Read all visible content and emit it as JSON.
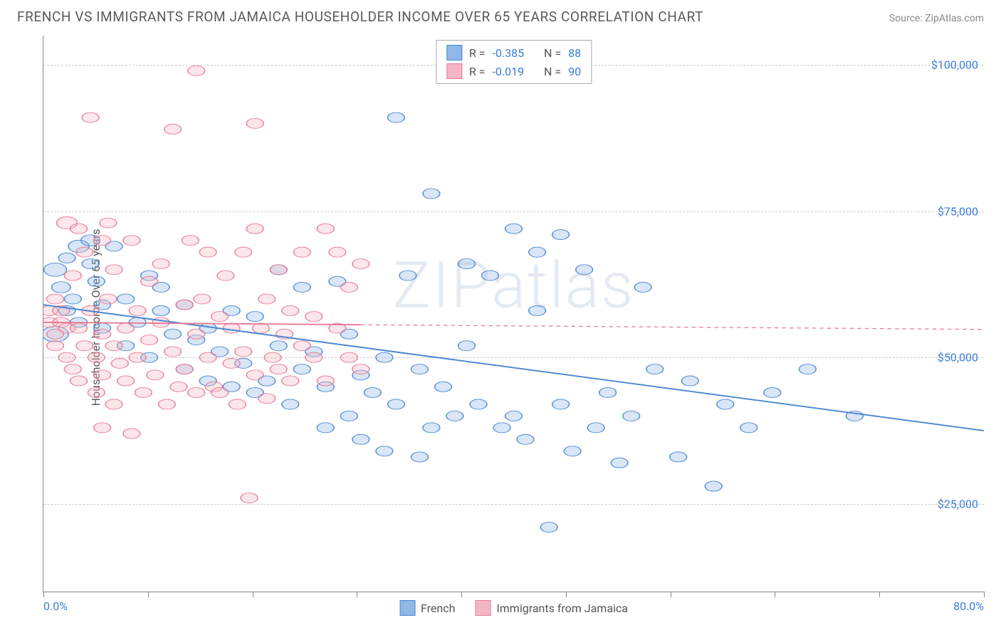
{
  "header": {
    "title": "FRENCH VS IMMIGRANTS FROM JAMAICA HOUSEHOLDER INCOME OVER 65 YEARS CORRELATION CHART",
    "source": "Source: ZipAtlas.com"
  },
  "watermark": "ZIPatlas",
  "chart": {
    "type": "scatter",
    "xlim": [
      0,
      80
    ],
    "ylim": [
      10000,
      105000
    ],
    "x_unit": "percent",
    "xlabel": "",
    "ylabel": "Householder Income Over 65 years",
    "xticks_minor": [
      0,
      8.89,
      17.78,
      26.67,
      35.56,
      44.44,
      53.33,
      62.22,
      71.11,
      80
    ],
    "xtick_labels": [
      {
        "x": 0,
        "label": "0.0%",
        "align": "left"
      },
      {
        "x": 80,
        "label": "80.0%",
        "align": "right"
      }
    ],
    "ytick_values": [
      25000,
      50000,
      75000,
      100000
    ],
    "ytick_labels": [
      "$25,000",
      "$50,000",
      "$75,000",
      "$100,000"
    ],
    "gridline_color": "#cccccc",
    "axis_color": "#888888",
    "ytick_label_color": "#3b7dd8",
    "xtick_label_color": "#3b7dd8",
    "background_color": "#ffffff",
    "label_fontsize": 16,
    "title_fontsize": 19,
    "marker_radius_range": [
      6,
      14
    ],
    "marker_radius_default": 9,
    "marker_fill_opacity": 0.35,
    "marker_stroke_opacity": 0.9,
    "marker_stroke_width": 1.2,
    "trend_line_width": 2.4
  },
  "legend_stats": {
    "series1": {
      "R_label": "R =",
      "R": "-0.385",
      "N_label": "N =",
      "N": "88"
    },
    "series2": {
      "R_label": "R =",
      "R": "-0.019",
      "N_label": "N =",
      "N": "90"
    }
  },
  "bottom_legend": {
    "series1_label": "French",
    "series2_label": "Immigrants from Jamaica"
  },
  "series": [
    {
      "name": "French",
      "fill_color": "#8fb7e8",
      "stroke_color": "#4a86d0",
      "trend": {
        "x1": 0,
        "y1": 59000,
        "x2": 80,
        "y2": 37500,
        "x_max": 80,
        "dash": "none"
      },
      "points": [
        {
          "x": 1,
          "y": 54000,
          "r": 14
        },
        {
          "x": 1,
          "y": 65000,
          "r": 12
        },
        {
          "x": 1.5,
          "y": 62000,
          "r": 10
        },
        {
          "x": 2,
          "y": 67000
        },
        {
          "x": 2,
          "y": 58000
        },
        {
          "x": 2.5,
          "y": 60000
        },
        {
          "x": 3,
          "y": 69000,
          "r": 11
        },
        {
          "x": 3,
          "y": 56000
        },
        {
          "x": 4,
          "y": 70000,
          "r": 10
        },
        {
          "x": 4,
          "y": 66000
        },
        {
          "x": 4.5,
          "y": 63000
        },
        {
          "x": 5,
          "y": 59000
        },
        {
          "x": 5,
          "y": 55000
        },
        {
          "x": 6,
          "y": 69000
        },
        {
          "x": 7,
          "y": 52000
        },
        {
          "x": 7,
          "y": 60000
        },
        {
          "x": 8,
          "y": 56000
        },
        {
          "x": 9,
          "y": 64000
        },
        {
          "x": 9,
          "y": 50000
        },
        {
          "x": 10,
          "y": 62000
        },
        {
          "x": 10,
          "y": 58000
        },
        {
          "x": 11,
          "y": 54000
        },
        {
          "x": 12,
          "y": 48000
        },
        {
          "x": 12,
          "y": 59000
        },
        {
          "x": 13,
          "y": 53000
        },
        {
          "x": 14,
          "y": 46000
        },
        {
          "x": 14,
          "y": 55000
        },
        {
          "x": 15,
          "y": 51000
        },
        {
          "x": 16,
          "y": 45000
        },
        {
          "x": 16,
          "y": 58000
        },
        {
          "x": 17,
          "y": 49000
        },
        {
          "x": 18,
          "y": 57000
        },
        {
          "x": 18,
          "y": 44000
        },
        {
          "x": 19,
          "y": 46000
        },
        {
          "x": 20,
          "y": 52000
        },
        {
          "x": 20,
          "y": 65000
        },
        {
          "x": 21,
          "y": 42000
        },
        {
          "x": 22,
          "y": 62000
        },
        {
          "x": 22,
          "y": 48000
        },
        {
          "x": 23,
          "y": 51000
        },
        {
          "x": 24,
          "y": 38000
        },
        {
          "x": 24,
          "y": 45000
        },
        {
          "x": 25,
          "y": 63000
        },
        {
          "x": 26,
          "y": 40000
        },
        {
          "x": 26,
          "y": 54000
        },
        {
          "x": 27,
          "y": 47000
        },
        {
          "x": 27,
          "y": 36000
        },
        {
          "x": 28,
          "y": 44000
        },
        {
          "x": 29,
          "y": 50000
        },
        {
          "x": 29,
          "y": 34000
        },
        {
          "x": 30,
          "y": 91000
        },
        {
          "x": 30,
          "y": 42000
        },
        {
          "x": 31,
          "y": 64000
        },
        {
          "x": 32,
          "y": 48000
        },
        {
          "x": 32,
          "y": 33000
        },
        {
          "x": 33,
          "y": 78000
        },
        {
          "x": 33,
          "y": 38000
        },
        {
          "x": 34,
          "y": 45000
        },
        {
          "x": 35,
          "y": 40000
        },
        {
          "x": 36,
          "y": 66000
        },
        {
          "x": 36,
          "y": 52000
        },
        {
          "x": 37,
          "y": 42000
        },
        {
          "x": 38,
          "y": 64000
        },
        {
          "x": 39,
          "y": 38000
        },
        {
          "x": 40,
          "y": 40000
        },
        {
          "x": 40,
          "y": 72000
        },
        {
          "x": 41,
          "y": 36000
        },
        {
          "x": 42,
          "y": 58000
        },
        {
          "x": 42,
          "y": 68000
        },
        {
          "x": 43,
          "y": 21000
        },
        {
          "x": 44,
          "y": 71000
        },
        {
          "x": 44,
          "y": 42000
        },
        {
          "x": 45,
          "y": 34000
        },
        {
          "x": 46,
          "y": 65000
        },
        {
          "x": 47,
          "y": 38000
        },
        {
          "x": 48,
          "y": 44000
        },
        {
          "x": 49,
          "y": 32000
        },
        {
          "x": 50,
          "y": 40000
        },
        {
          "x": 51,
          "y": 62000
        },
        {
          "x": 52,
          "y": 48000
        },
        {
          "x": 54,
          "y": 33000
        },
        {
          "x": 55,
          "y": 46000
        },
        {
          "x": 57,
          "y": 28000
        },
        {
          "x": 58,
          "y": 42000
        },
        {
          "x": 60,
          "y": 38000
        },
        {
          "x": 62,
          "y": 44000
        },
        {
          "x": 65,
          "y": 48000
        },
        {
          "x": 69,
          "y": 40000
        }
      ]
    },
    {
      "name": "Immigrants from Jamaica",
      "fill_color": "#f4b6c4",
      "stroke_color": "#e87a96",
      "trend": {
        "x1": 0,
        "y1": 56000,
        "x2": 80,
        "y2": 54800,
        "x_max": 27,
        "dash": "4,4"
      },
      "points": [
        {
          "x": 0.5,
          "y": 58000
        },
        {
          "x": 0.5,
          "y": 56000
        },
        {
          "x": 1,
          "y": 54000
        },
        {
          "x": 1,
          "y": 52000
        },
        {
          "x": 1,
          "y": 60000
        },
        {
          "x": 1.5,
          "y": 56000
        },
        {
          "x": 1.5,
          "y": 58000
        },
        {
          "x": 2,
          "y": 73000,
          "r": 11
        },
        {
          "x": 2,
          "y": 55000
        },
        {
          "x": 2,
          "y": 50000
        },
        {
          "x": 2.5,
          "y": 48000
        },
        {
          "x": 2.5,
          "y": 64000
        },
        {
          "x": 3,
          "y": 72000
        },
        {
          "x": 3,
          "y": 55000
        },
        {
          "x": 3,
          "y": 46000
        },
        {
          "x": 3.5,
          "y": 68000
        },
        {
          "x": 3.5,
          "y": 52000
        },
        {
          "x": 4,
          "y": 91000
        },
        {
          "x": 4,
          "y": 58000
        },
        {
          "x": 4.5,
          "y": 50000
        },
        {
          "x": 4.5,
          "y": 44000
        },
        {
          "x": 5,
          "y": 70000
        },
        {
          "x": 5,
          "y": 54000
        },
        {
          "x": 5,
          "y": 47000
        },
        {
          "x": 5,
          "y": 38000
        },
        {
          "x": 5.5,
          "y": 73000
        },
        {
          "x": 5.5,
          "y": 60000
        },
        {
          "x": 6,
          "y": 52000
        },
        {
          "x": 6,
          "y": 42000
        },
        {
          "x": 6,
          "y": 65000
        },
        {
          "x": 6.5,
          "y": 49000
        },
        {
          "x": 7,
          "y": 55000
        },
        {
          "x": 7,
          "y": 46000
        },
        {
          "x": 7.5,
          "y": 70000
        },
        {
          "x": 7.5,
          "y": 37000
        },
        {
          "x": 8,
          "y": 58000
        },
        {
          "x": 8,
          "y": 50000
        },
        {
          "x": 8.5,
          "y": 44000
        },
        {
          "x": 9,
          "y": 63000
        },
        {
          "x": 9,
          "y": 53000
        },
        {
          "x": 9.5,
          "y": 47000
        },
        {
          "x": 10,
          "y": 56000
        },
        {
          "x": 10,
          "y": 66000
        },
        {
          "x": 10.5,
          "y": 42000
        },
        {
          "x": 11,
          "y": 89000
        },
        {
          "x": 11,
          "y": 51000
        },
        {
          "x": 11.5,
          "y": 45000
        },
        {
          "x": 12,
          "y": 59000
        },
        {
          "x": 12,
          "y": 48000
        },
        {
          "x": 12.5,
          "y": 70000
        },
        {
          "x": 13,
          "y": 99000
        },
        {
          "x": 13,
          "y": 54000
        },
        {
          "x": 13,
          "y": 44000
        },
        {
          "x": 13.5,
          "y": 60000
        },
        {
          "x": 14,
          "y": 50000
        },
        {
          "x": 14,
          "y": 68000
        },
        {
          "x": 14.5,
          "y": 45000
        },
        {
          "x": 15,
          "y": 57000
        },
        {
          "x": 15,
          "y": 44000
        },
        {
          "x": 15.5,
          "y": 64000
        },
        {
          "x": 16,
          "y": 49000
        },
        {
          "x": 16,
          "y": 55000
        },
        {
          "x": 16.5,
          "y": 42000
        },
        {
          "x": 17,
          "y": 68000
        },
        {
          "x": 17,
          "y": 51000
        },
        {
          "x": 17.5,
          "y": 26000
        },
        {
          "x": 18,
          "y": 72000
        },
        {
          "x": 18,
          "y": 90000
        },
        {
          "x": 18,
          "y": 47000
        },
        {
          "x": 18.5,
          "y": 55000
        },
        {
          "x": 19,
          "y": 60000
        },
        {
          "x": 19,
          "y": 43000
        },
        {
          "x": 19.5,
          "y": 50000
        },
        {
          "x": 20,
          "y": 65000
        },
        {
          "x": 20,
          "y": 48000
        },
        {
          "x": 20.5,
          "y": 54000
        },
        {
          "x": 21,
          "y": 58000
        },
        {
          "x": 21,
          "y": 46000
        },
        {
          "x": 22,
          "y": 52000
        },
        {
          "x": 22,
          "y": 68000
        },
        {
          "x": 23,
          "y": 50000
        },
        {
          "x": 23,
          "y": 57000
        },
        {
          "x": 24,
          "y": 72000
        },
        {
          "x": 24,
          "y": 46000
        },
        {
          "x": 25,
          "y": 68000
        },
        {
          "x": 25,
          "y": 55000
        },
        {
          "x": 26,
          "y": 50000
        },
        {
          "x": 26,
          "y": 62000
        },
        {
          "x": 27,
          "y": 66000
        },
        {
          "x": 27,
          "y": 48000
        }
      ]
    }
  ]
}
